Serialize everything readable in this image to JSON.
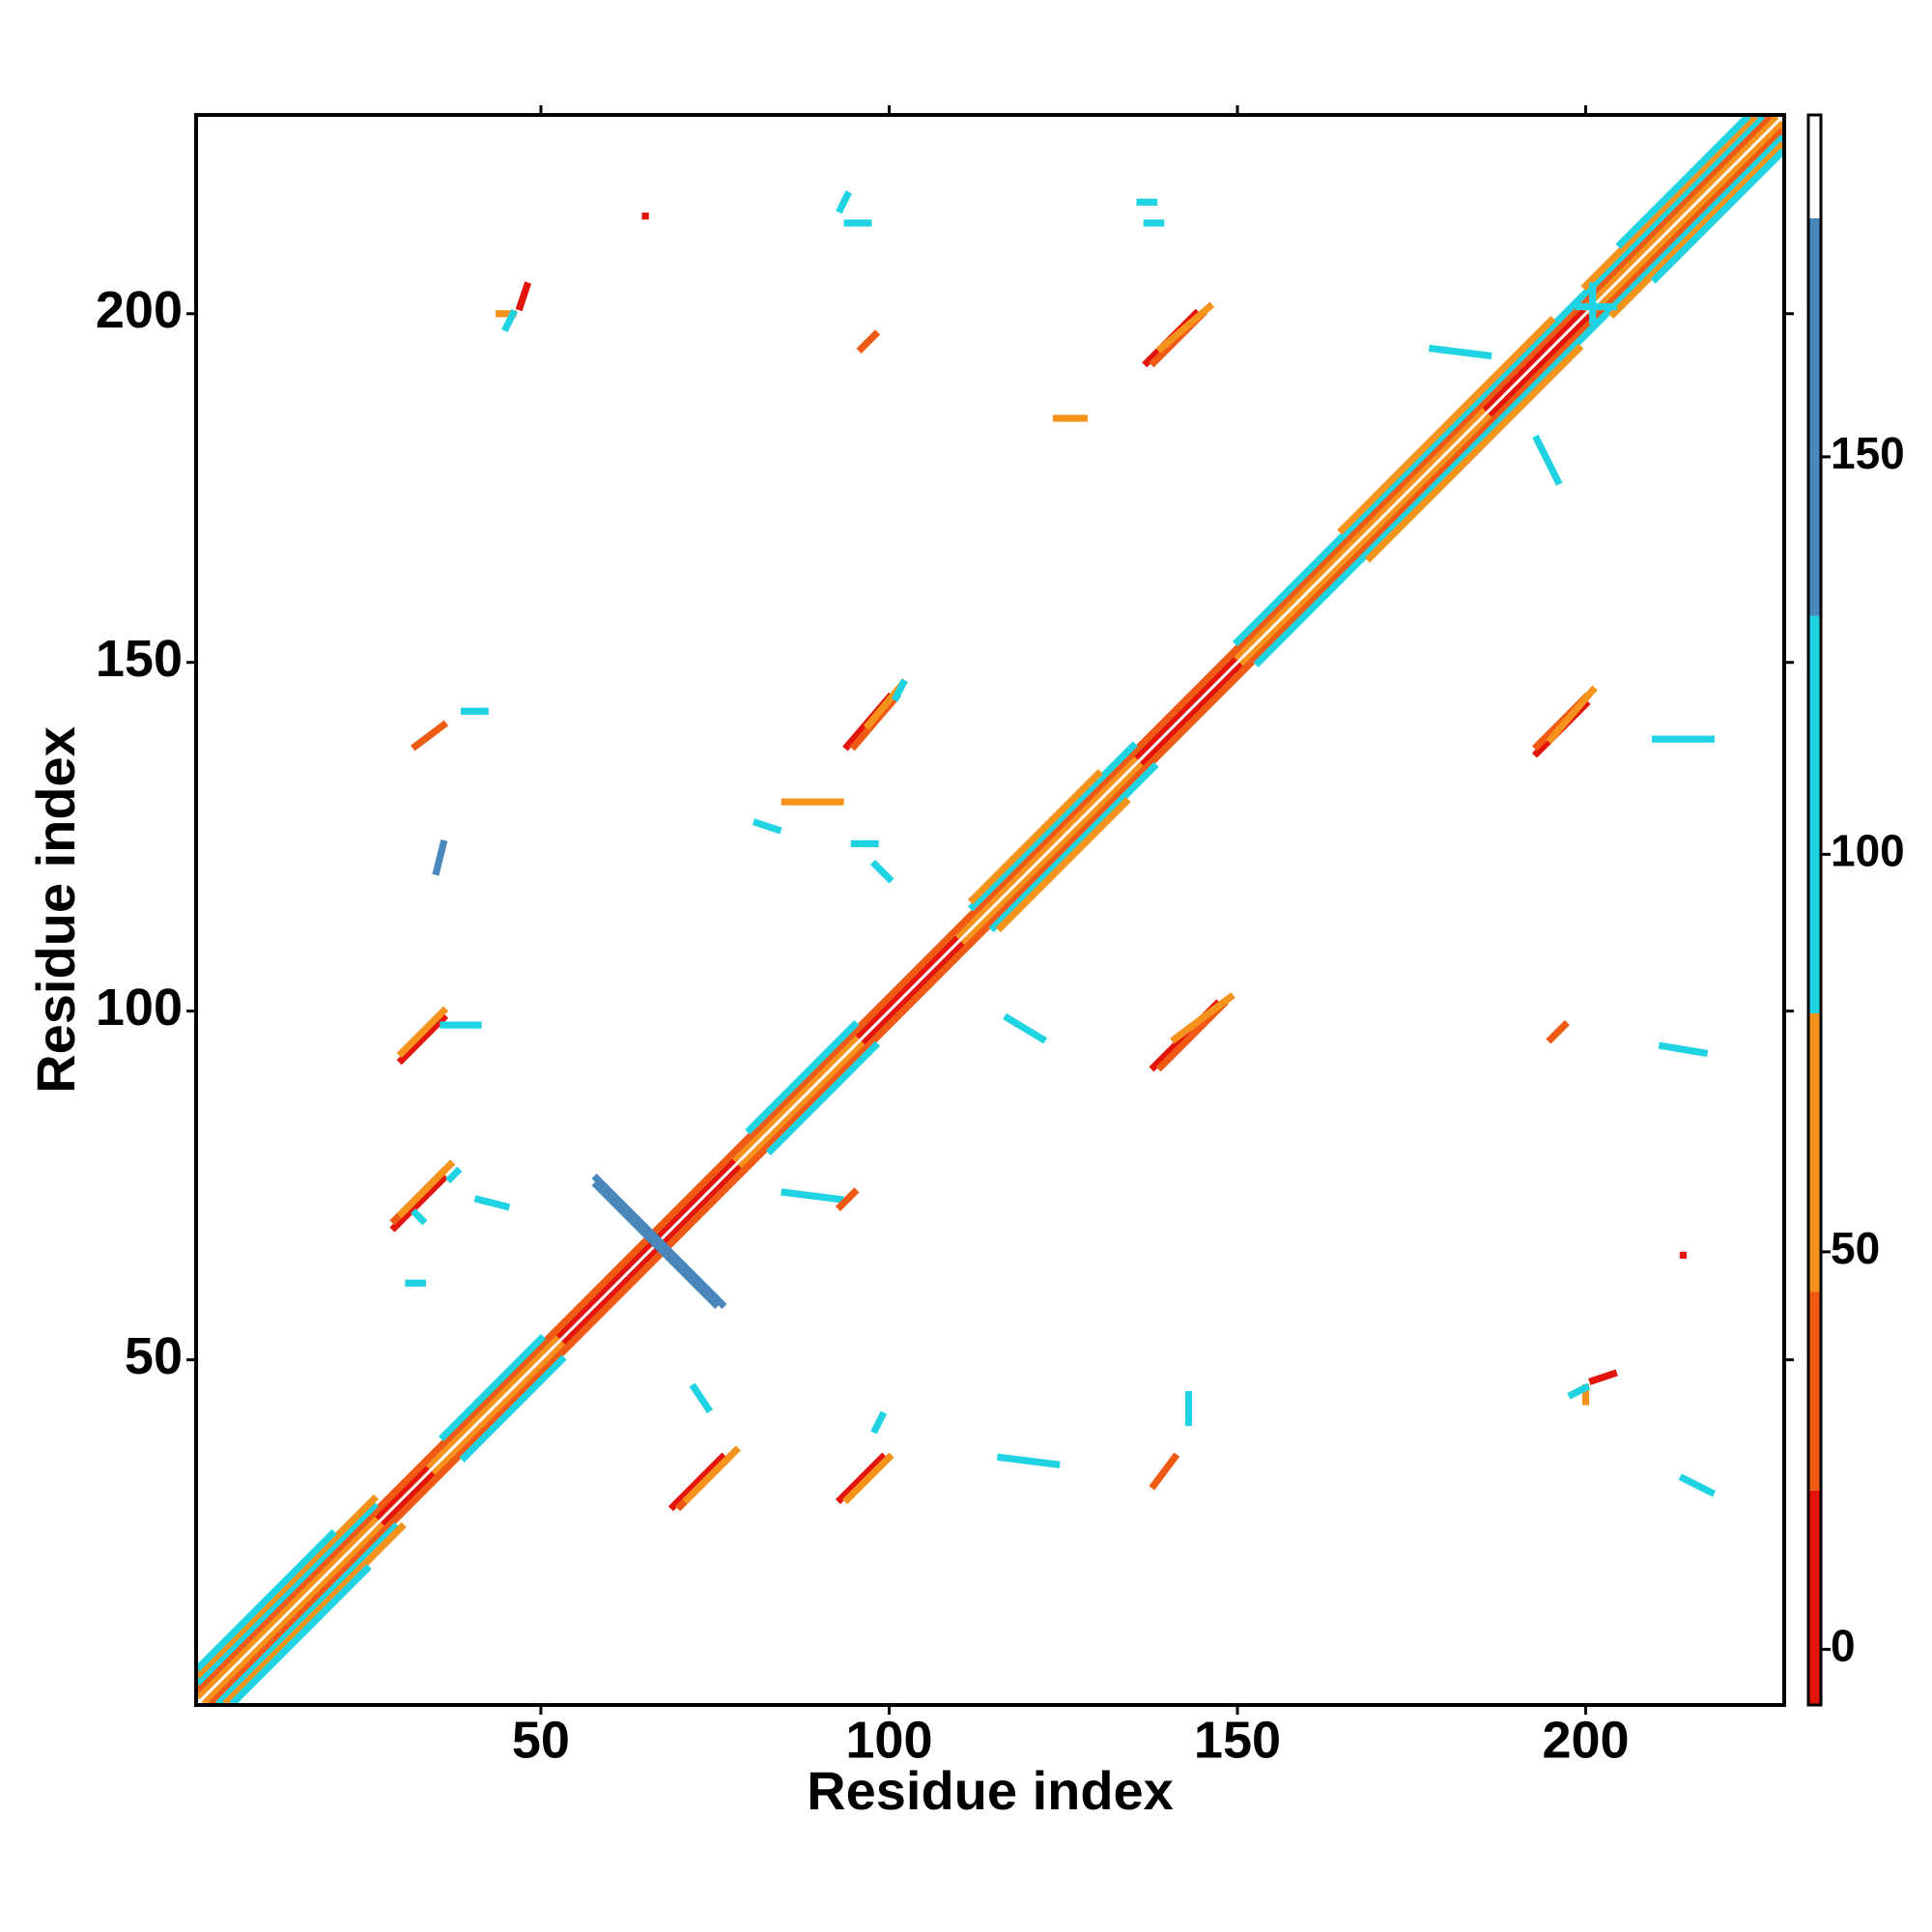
{
  "chart_data": {
    "type": "contact-map",
    "xlabel": "Residue index",
    "ylabel": "Residue index",
    "xlim": [
      0.5,
      228.5
    ],
    "ylim": [
      0.5,
      228.5
    ],
    "xticks": [
      50,
      100,
      150,
      200
    ],
    "yticks": [
      50,
      100,
      150,
      200
    ],
    "colorbar": {
      "lim": [
        -7,
        193
      ],
      "ticks": [
        0,
        50,
        100,
        150
      ],
      "bounds": [
        -7,
        20,
        45,
        80,
        130,
        180,
        193
      ],
      "colors": [
        "#e3140c",
        "#ef5a14",
        "#f6931c",
        "#1fd3e2",
        "#4a87bd",
        "#ffffff"
      ]
    },
    "segments": [
      {
        "x": [
          26,
          34
        ],
        "y": [
          27,
          35
        ],
        "value": 10
      },
      {
        "x": [
          52,
          78
        ],
        "y": [
          53,
          79
        ],
        "value": 10
      },
      {
        "x": [
          95,
          110
        ],
        "y": [
          96,
          111
        ],
        "value": 10
      },
      {
        "x": [
          135,
          150
        ],
        "y": [
          136,
          151
        ],
        "value": 10
      },
      {
        "x": [
          185,
          200
        ],
        "y": [
          186,
          201
        ],
        "value": 10
      },
      {
        "x": [
          1,
          26
        ],
        "y": [
          2,
          27
        ],
        "value": 60
      },
      {
        "x": [
          34,
          52
        ],
        "y": [
          35,
          53
        ],
        "value": 60
      },
      {
        "x": [
          78,
          95
        ],
        "y": [
          79,
          96
        ],
        "value": 60
      },
      {
        "x": [
          110,
          135
        ],
        "y": [
          111,
          136
        ],
        "value": 60
      },
      {
        "x": [
          150,
          185
        ],
        "y": [
          151,
          186
        ],
        "value": 60
      },
      {
        "x": [
          200,
          227
        ],
        "y": [
          201,
          228
        ],
        "value": 60
      },
      {
        "x": [
          27,
          35
        ],
        "y": [
          26,
          34
        ],
        "value": 10
      },
      {
        "x": [
          53,
          79
        ],
        "y": [
          52,
          78
        ],
        "value": 10
      },
      {
        "x": [
          96,
          111
        ],
        "y": [
          95,
          110
        ],
        "value": 10
      },
      {
        "x": [
          136,
          151
        ],
        "y": [
          135,
          150
        ],
        "value": 10
      },
      {
        "x": [
          186,
          201
        ],
        "y": [
          185,
          200
        ],
        "value": 10
      },
      {
        "x": [
          2,
          27
        ],
        "y": [
          1,
          26
        ],
        "value": 60
      },
      {
        "x": [
          35,
          53
        ],
        "y": [
          34,
          52
        ],
        "value": 60
      },
      {
        "x": [
          79,
          96
        ],
        "y": [
          78,
          95
        ],
        "value": 60
      },
      {
        "x": [
          111,
          136
        ],
        "y": [
          110,
          135
        ],
        "value": 60
      },
      {
        "x": [
          151,
          186
        ],
        "y": [
          150,
          185
        ],
        "value": 60
      },
      {
        "x": [
          201,
          228
        ],
        "y": [
          200,
          227
        ],
        "value": 60
      },
      {
        "x": [
          1,
          226
        ],
        "y": [
          3,
          228
        ],
        "value": 30
      },
      {
        "x": [
          3,
          228
        ],
        "y": [
          1,
          226
        ],
        "value": 30
      },
      {
        "x": [
          1,
          26
        ],
        "y": [
          4,
          29
        ],
        "value": 100
      },
      {
        "x": [
          36,
          50
        ],
        "y": [
          39,
          53
        ],
        "value": 100
      },
      {
        "x": [
          80,
          95
        ],
        "y": [
          83,
          98
        ],
        "value": 100
      },
      {
        "x": [
          112,
          135
        ],
        "y": [
          115,
          138
        ],
        "value": 100
      },
      {
        "x": [
          150,
          225
        ],
        "y": [
          153,
          228
        ],
        "value": 100
      },
      {
        "x": [
          4,
          29
        ],
        "y": [
          1,
          26
        ],
        "value": 100
      },
      {
        "x": [
          39,
          53
        ],
        "y": [
          36,
          50
        ],
        "value": 100
      },
      {
        "x": [
          83,
          98
        ],
        "y": [
          80,
          95
        ],
        "value": 100
      },
      {
        "x": [
          115,
          138
        ],
        "y": [
          112,
          135
        ],
        "value": 100
      },
      {
        "x": [
          153,
          228
        ],
        "y": [
          150,
          225
        ],
        "value": 100
      },
      {
        "x": [
          1,
          26
        ],
        "y": [
          5,
          30
        ],
        "value": 60
      },
      {
        "x": [
          112,
          130
        ],
        "y": [
          116,
          134
        ],
        "value": 60
      },
      {
        "x": [
          165,
          195
        ],
        "y": [
          169,
          199
        ],
        "value": 60
      },
      {
        "x": [
          200,
          224
        ],
        "y": [
          204,
          228
        ],
        "value": 60
      },
      {
        "x": [
          5,
          30
        ],
        "y": [
          1,
          26
        ],
        "value": 60
      },
      {
        "x": [
          116,
          134
        ],
        "y": [
          112,
          130
        ],
        "value": 60
      },
      {
        "x": [
          169,
          199
        ],
        "y": [
          165,
          195
        ],
        "value": 60
      },
      {
        "x": [
          204,
          228
        ],
        "y": [
          200,
          224
        ],
        "value": 60
      },
      {
        "x": [
          1,
          20
        ],
        "y": [
          6,
          25
        ],
        "value": 100
      },
      {
        "x": [
          205,
          223
        ],
        "y": [
          210,
          228
        ],
        "value": 100
      },
      {
        "x": [
          6,
          25
        ],
        "y": [
          1,
          20
        ],
        "value": 100
      },
      {
        "x": [
          210,
          228
        ],
        "y": [
          205,
          223
        ],
        "value": 100
      },
      {
        "x": [
          58,
          76
        ],
        "y": [
          76,
          58
        ],
        "value": 150
      },
      {
        "x": [
          58,
          75
        ],
        "y": [
          75,
          58
        ],
        "value": 150
      },
      {
        "x": [
          69,
          76
        ],
        "y": [
          29,
          36
        ],
        "value": 10
      },
      {
        "x": [
          70,
          77
        ],
        "y": [
          29,
          36
        ],
        "value": 30
      },
      {
        "x": [
          71,
          78
        ],
        "y": [
          30,
          37
        ],
        "value": 60
      },
      {
        "x": [
          29,
          36
        ],
        "y": [
          69,
          76
        ],
        "value": 10
      },
      {
        "x": [
          29,
          36
        ],
        "y": [
          70,
          77
        ],
        "value": 30
      },
      {
        "x": [
          30,
          37
        ],
        "y": [
          71,
          78
        ],
        "value": 60
      },
      {
        "x": [
          37,
          38
        ],
        "y": [
          76,
          77
        ],
        "value": 100
      },
      {
        "x": [
          93,
          99
        ],
        "y": [
          30,
          36
        ],
        "value": 10
      },
      {
        "x": [
          94,
          100
        ],
        "y": [
          30,
          36
        ],
        "value": 60
      },
      {
        "x": [
          98,
          99
        ],
        "y": [
          40,
          42
        ],
        "value": 100
      },
      {
        "x": [
          30,
          36
        ],
        "y": [
          93,
          99
        ],
        "value": 10
      },
      {
        "x": [
          30,
          36
        ],
        "y": [
          94,
          100
        ],
        "value": 60
      },
      {
        "x": [
          36,
          41
        ],
        "y": [
          98,
          98
        ],
        "value": 100
      },
      {
        "x": [
          137,
          144
        ],
        "y": [
          193,
          200
        ],
        "value": 10
      },
      {
        "x": [
          138,
          145
        ],
        "y": [
          193,
          200
        ],
        "value": 30
      },
      {
        "x": [
          139,
          146
        ],
        "y": [
          195,
          201
        ],
        "value": 60
      },
      {
        "x": [
          193,
          200
        ],
        "y": [
          137,
          144
        ],
        "value": 10
      },
      {
        "x": [
          193,
          200
        ],
        "y": [
          138,
          145
        ],
        "value": 30
      },
      {
        "x": [
          195,
          201
        ],
        "y": [
          139,
          146
        ],
        "value": 60
      },
      {
        "x": [
          94,
          100
        ],
        "y": [
          138,
          145
        ],
        "value": 10
      },
      {
        "x": [
          95,
          101
        ],
        "y": [
          138,
          145
        ],
        "value": 30
      },
      {
        "x": [
          97,
          102
        ],
        "y": [
          141,
          147
        ],
        "value": 60
      },
      {
        "x": [
          101,
          102
        ],
        "y": [
          145,
          147
        ],
        "value": 100
      },
      {
        "x": [
          138,
          147
        ],
        "y": [
          92,
          101
        ],
        "value": 10
      },
      {
        "x": [
          139,
          148
        ],
        "y": [
          92,
          101
        ],
        "value": 30
      },
      {
        "x": [
          141,
          149
        ],
        "y": [
          96,
          102
        ],
        "value": 60
      },
      {
        "x": [
          32,
          36
        ],
        "y": [
          138,
          141
        ],
        "value": 30
      },
      {
        "x": [
          138,
          141
        ],
        "y": [
          32,
          36
        ],
        "value": 30
      },
      {
        "x": [
          44,
          46
        ],
        "y": [
          200,
          200
        ],
        "value": 60
      },
      {
        "x": [
          47,
          48
        ],
        "y": [
          201,
          204
        ],
        "value": 10
      },
      {
        "x": [
          45,
          46
        ],
        "y": [
          198,
          200
        ],
        "value": 100
      },
      {
        "x": [
          200,
          200
        ],
        "y": [
          44,
          46
        ],
        "value": 60
      },
      {
        "x": [
          201,
          204
        ],
        "y": [
          47,
          48
        ],
        "value": 10
      },
      {
        "x": [
          198,
          200
        ],
        "y": [
          45,
          46
        ],
        "value": 100
      },
      {
        "x": [
          96,
          98
        ],
        "y": [
          195,
          197
        ],
        "value": 30
      },
      {
        "x": [
          195,
          197
        ],
        "y": [
          96,
          98
        ],
        "value": 30
      },
      {
        "x": [
          39,
          42
        ],
        "y": [
          143,
          143
        ],
        "value": 100
      },
      {
        "x": [
          35,
          36
        ],
        "y": [
          120,
          124
        ],
        "value": 140
      },
      {
        "x": [
          93,
          94
        ],
        "y": [
          215,
          217
        ],
        "value": 120
      },
      {
        "x": [
          94,
          97
        ],
        "y": [
          213,
          213
        ],
        "value": 100
      },
      {
        "x": [
          136,
          138
        ],
        "y": [
          216,
          216
        ],
        "value": 100
      },
      {
        "x": [
          137,
          139
        ],
        "y": [
          213,
          213
        ],
        "value": 100
      },
      {
        "x": [
          199,
          204
        ],
        "y": [
          201,
          201
        ],
        "value": 115
      },
      {
        "x": [
          201,
          201
        ],
        "y": [
          199,
          204
        ],
        "value": 115
      },
      {
        "x": [
          178,
          186
        ],
        "y": [
          195,
          194
        ],
        "value": 100
      },
      {
        "x": [
          193,
          196
        ],
        "y": [
          182,
          176
        ],
        "value": 100
      },
      {
        "x": [
          95,
          98
        ],
        "y": [
          124,
          124
        ],
        "value": 100
      },
      {
        "x": [
          98,
          100
        ],
        "y": [
          121,
          119
        ],
        "value": 100
      },
      {
        "x": [
          117,
          122
        ],
        "y": [
          99,
          96
        ],
        "value": 100
      },
      {
        "x": [
          116,
          124
        ],
        "y": [
          36,
          35
        ],
        "value": 110
      },
      {
        "x": [
          143,
          143
        ],
        "y": [
          41,
          45
        ],
        "value": 100
      },
      {
        "x": [
          210,
          218
        ],
        "y": [
          139,
          139
        ],
        "value": 100
      },
      {
        "x": [
          211,
          217
        ],
        "y": [
          95,
          94
        ],
        "value": 110
      },
      {
        "x": [
          32,
          33
        ],
        "y": [
          71,
          70
        ],
        "value": 100
      },
      {
        "x": [
          31,
          33
        ],
        "y": [
          61,
          61
        ],
        "value": 100
      },
      {
        "x": [
          72,
          74
        ],
        "y": [
          46,
          43
        ],
        "value": 100
      },
      {
        "x": [
          85,
          93
        ],
        "y": [
          130,
          130
        ],
        "value": 60
      },
      {
        "x": [
          81,
          84
        ],
        "y": [
          127,
          126
        ],
        "value": 100
      },
      {
        "x": [
          85,
          93
        ],
        "y": [
          74,
          73
        ],
        "value": 100
      },
      {
        "x": [
          93,
          95
        ],
        "y": [
          72,
          74
        ],
        "value": 30
      },
      {
        "x": [
          124,
          128
        ],
        "y": [
          185,
          185
        ],
        "value": 60
      },
      {
        "x": [
          41,
          45
        ],
        "y": [
          73,
          72
        ],
        "value": 100
      },
      {
        "x": [
          65,
          65
        ],
        "y": [
          214,
          214
        ],
        "value": 10
      },
      {
        "x": [
          214,
          214
        ],
        "y": [
          65,
          65
        ],
        "value": 10
      },
      {
        "x": [
          214,
          218
        ],
        "y": [
          33,
          31
        ],
        "value": 110
      }
    ]
  }
}
